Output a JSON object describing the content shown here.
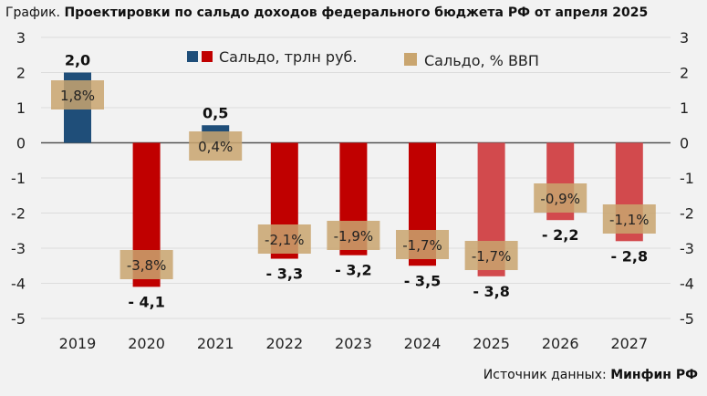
{
  "title_prefix": "График.",
  "title_main": "Проектировки по сальдо доходов федерального бюджета РФ от апреля 2025",
  "source_label": "Источник данных:",
  "source_value": "Минфин РФ",
  "chart_data": {
    "type": "bar",
    "categories": [
      "2019",
      "2020",
      "2021",
      "2022",
      "2023",
      "2024",
      "2025",
      "2026",
      "2027"
    ],
    "series": [
      {
        "name": "Сальдо, трлн руб.",
        "values": [
          2.0,
          -4.1,
          0.5,
          -3.3,
          -3.2,
          -3.5,
          -3.8,
          -2.2,
          -2.8
        ],
        "labels": [
          "2,0",
          "- 4,1",
          "0,5",
          "- 3,3",
          "- 3,2",
          "- 3,5",
          "- 3,8",
          "- 2,2",
          "- 2,8"
        ]
      },
      {
        "name": "Сальдо, % ВВП",
        "values": [
          1.8,
          -3.8,
          0.4,
          -2.1,
          -1.9,
          -1.7,
          -1.7,
          -0.9,
          -1.1
        ],
        "labels": [
          "1,8%",
          "-3,8%",
          "0,4%",
          "-2,1%",
          "-1,9%",
          "-1,7%",
          "-1,7%",
          "-0,9%",
          "-1,1%"
        ]
      }
    ],
    "ylim": [
      -5,
      3
    ],
    "yticks": [
      "3",
      "2",
      "1",
      "0",
      "-1",
      "-2",
      "-3",
      "-4",
      "-5"
    ],
    "grid": true,
    "legend_position": "top",
    "colors": {
      "positive": "#1f4e79",
      "negative": "#c00000",
      "forecast": "#d24a4d",
      "pct": "#c9a56f",
      "bg": "#f2f2f2"
    }
  }
}
